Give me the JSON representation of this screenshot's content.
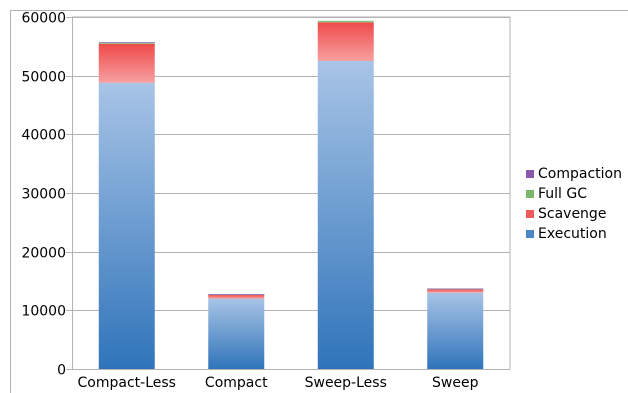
{
  "chart_data": {
    "type": "bar",
    "stacked": true,
    "categories": [
      "Compact-Less",
      "Compact",
      "Sweep-Less",
      "Sweep"
    ],
    "series": [
      {
        "name": "Execution",
        "values": [
          48800,
          12000,
          52500,
          13000
        ],
        "color": "#4a86c8"
      },
      {
        "name": "Scavenge",
        "values": [
          6600,
          700,
          6600,
          650
        ],
        "color": "#f05a5a"
      },
      {
        "name": "Full GC",
        "values": [
          150,
          40,
          250,
          40
        ],
        "color": "#7cb86a"
      },
      {
        "name": "Compaction",
        "values": [
          150,
          10,
          0,
          10
        ],
        "color": "#8a5aa8"
      }
    ],
    "y_ticks": [
      "0",
      "10000",
      "20000",
      "30000",
      "40000",
      "50000",
      "60000"
    ],
    "ylim": [
      0,
      60000
    ],
    "grid": true,
    "legend_position": "right"
  }
}
